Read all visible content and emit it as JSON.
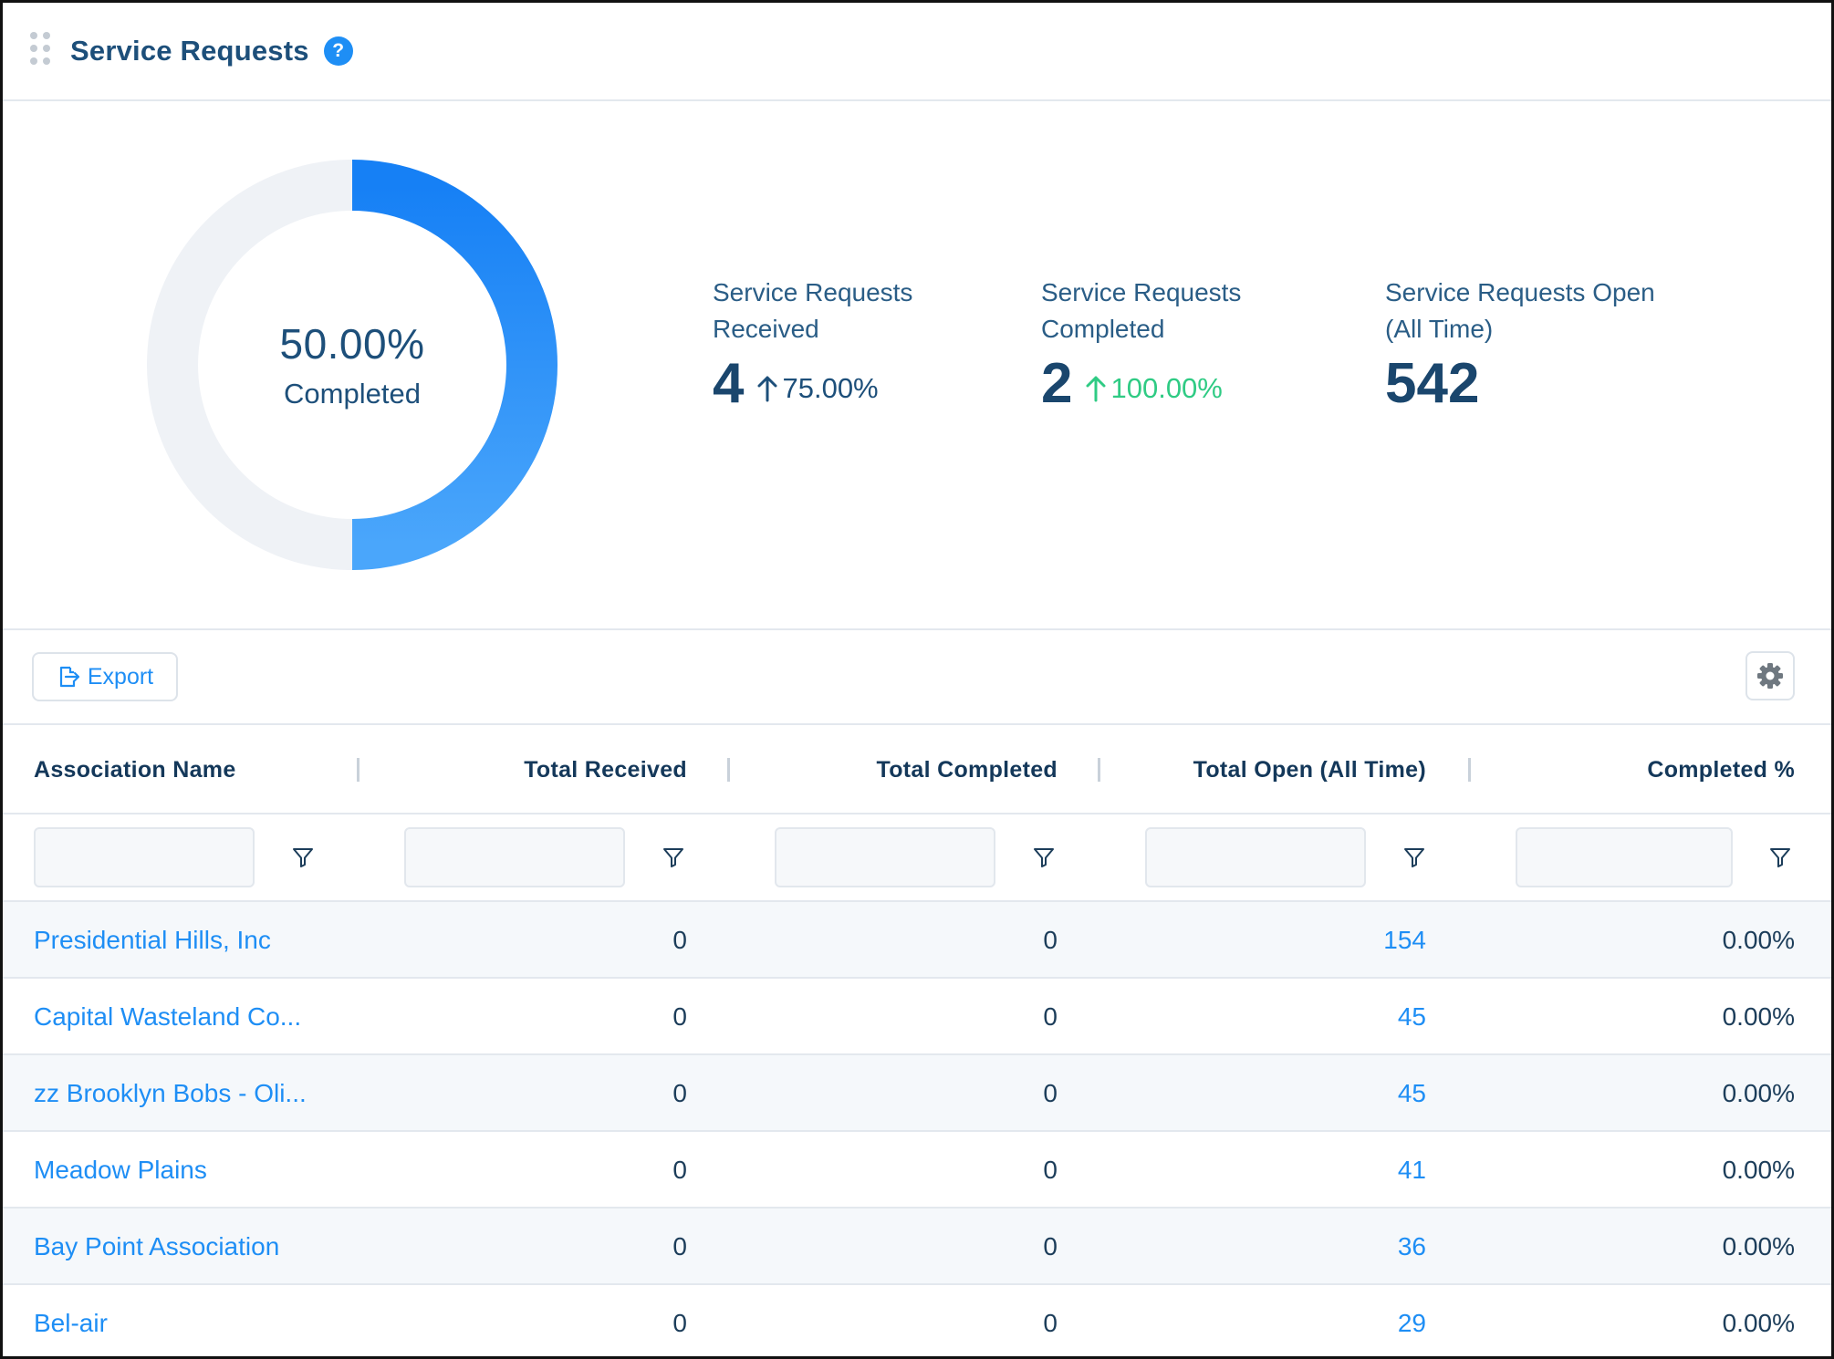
{
  "header": {
    "title": "Service Requests",
    "help_label": "?"
  },
  "donut": {
    "percent_label": "50.00%",
    "caption": "Completed",
    "completed_fraction": 0.5,
    "color_start": "#1680f5",
    "color_end": "#4aa6fb",
    "track_color": "#eff2f6"
  },
  "stats": [
    {
      "label": "Service Requests Received",
      "value": "4",
      "change": "75.00%",
      "change_color": "#1d4f7a"
    },
    {
      "label": "Service Requests Completed",
      "value": "2",
      "change": "100.00%",
      "change_color": "#2fcb84"
    },
    {
      "label": "Service Requests Open (All Time)",
      "value": "542",
      "change": "",
      "change_color": ""
    }
  ],
  "toolbar": {
    "export_label": "Export"
  },
  "table": {
    "columns": [
      "Association Name",
      "Total Received",
      "Total Completed",
      "Total Open (All Time)",
      "Completed %"
    ],
    "rows": [
      [
        "Presidential Hills, Inc",
        "0",
        "0",
        "154",
        "0.00%"
      ],
      [
        "Capital Wasteland Co...",
        "0",
        "0",
        "45",
        "0.00%"
      ],
      [
        "zz Brooklyn Bobs - Oli...",
        "0",
        "0",
        "45",
        "0.00%"
      ],
      [
        "Meadow Plains",
        "0",
        "0",
        "41",
        "0.00%"
      ],
      [
        "Bay Point Association",
        "0",
        "0",
        "36",
        "0.00%"
      ],
      [
        "Bel-air",
        "0",
        "0",
        "29",
        "0.00%"
      ]
    ]
  },
  "colors": {
    "accent": "#1e8ef5",
    "heading": "#14385a",
    "positive": "#2fcb84"
  }
}
